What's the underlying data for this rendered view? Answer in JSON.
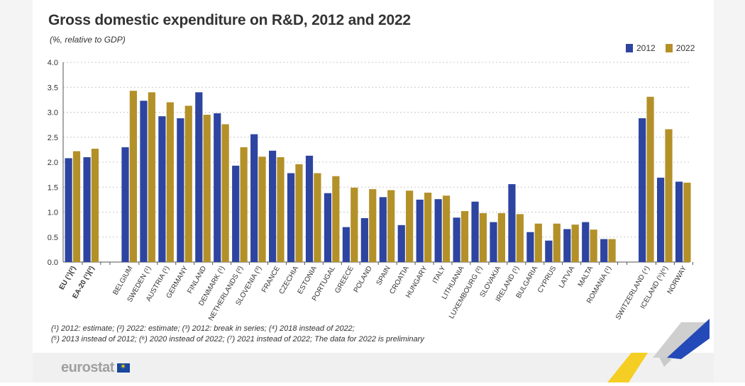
{
  "header": {
    "title": "Gross domestic expenditure on R&D, 2012 and 2022",
    "subtitle": "(%, relative to GDP)"
  },
  "legend": [
    {
      "label": "2012",
      "color": "#2d44a0"
    },
    {
      "label": "2022",
      "color": "#b39128"
    }
  ],
  "chart_data": {
    "type": "bar",
    "title": "Gross domestic expenditure on R&D, 2012 and 2022",
    "subtitle": "(%, relative to GDP)",
    "ylim": [
      0,
      4.0
    ],
    "yticks": [
      "0.0",
      "0.5",
      "1.0",
      "1.5",
      "2.0",
      "2.5",
      "3.0",
      "3.5",
      "4.0"
    ],
    "grid": true,
    "legend_position": "top-right",
    "groups": [
      {
        "categories": [
          "EU (¹)(²)",
          "EA-20 (¹)(²)"
        ],
        "bold": true
      },
      {
        "categories": [
          "BELGIUM",
          "SWEDEN (¹)",
          "AUSTRIA (¹)",
          "GERMANY",
          "FINLAND",
          "DENMARK (¹)",
          "NETHERLANDS (²)",
          "SLOVENIA (³)",
          "FRANCE",
          "CZECHIA",
          "ESTONIA",
          "PORTUGAL",
          "GREECE",
          "POLAND",
          "SPAIN",
          "CROATIA",
          "HUNGARY",
          "ITALY",
          "LITHUANIA",
          "LUXEMBOURG (²)",
          "SLOVAKIA",
          "IRELAND (¹)",
          "BULGARIA",
          "CYPRUS",
          "LATVIA",
          "MALTA",
          "ROMANIA (¹)"
        ],
        "bold": false
      },
      {
        "categories": [
          "SWITZERLAND (⁴)",
          "ICELAND (⁵)(⁶)",
          "NORWAY"
        ],
        "bold": false
      }
    ],
    "categories": [
      "EU (¹)(²)",
      "EA-20 (¹)(²)",
      "BELGIUM",
      "SWEDEN (¹)",
      "AUSTRIA (¹)",
      "GERMANY",
      "FINLAND",
      "DENMARK (¹)",
      "NETHERLANDS (²)",
      "SLOVENIA (³)",
      "FRANCE",
      "CZECHIA",
      "ESTONIA",
      "PORTUGAL",
      "GREECE",
      "POLAND",
      "SPAIN",
      "CROATIA",
      "HUNGARY",
      "ITALY",
      "LITHUANIA",
      "LUXEMBOURG (²)",
      "SLOVAKIA",
      "IRELAND (¹)",
      "BULGARIA",
      "CYPRUS",
      "LATVIA",
      "MALTA",
      "ROMANIA (¹)",
      "SWITZERLAND (⁴)",
      "ICELAND (⁵)(⁶)",
      "NORWAY"
    ],
    "series": [
      {
        "name": "2012",
        "color": "#2d44a0",
        "values": [
          2.08,
          2.1,
          2.3,
          3.23,
          2.92,
          2.88,
          3.4,
          2.98,
          1.93,
          2.56,
          2.23,
          1.78,
          2.13,
          1.38,
          0.7,
          0.88,
          1.3,
          0.74,
          1.25,
          1.26,
          0.89,
          1.21,
          0.8,
          1.56,
          0.6,
          0.43,
          0.66,
          0.8,
          0.46,
          2.88,
          1.69,
          1.61
        ]
      },
      {
        "name": "2022",
        "color": "#b39128",
        "values": [
          2.22,
          2.27,
          3.43,
          3.4,
          3.2,
          3.13,
          2.95,
          2.76,
          2.3,
          2.11,
          2.1,
          1.96,
          1.78,
          1.72,
          1.49,
          1.46,
          1.44,
          1.43,
          1.39,
          1.33,
          1.02,
          0.98,
          0.98,
          0.96,
          0.77,
          0.77,
          0.75,
          0.65,
          0.46,
          3.31,
          2.66,
          1.59
        ]
      }
    ]
  },
  "footnotes": {
    "line1": "(¹) 2012: estimate; (²) 2022: estimate; (³) 2012: break in series; (⁴) 2018 instead of 2022;",
    "line2": "(⁵) 2013 instead of 2012; (⁶) 2020 instead of 2022; (⁷) 2021 instead of 2022; The data for 2022 is preliminary"
  },
  "branding": {
    "logo_text": "eurostat",
    "flag_icon": "eu-flag-icon"
  }
}
